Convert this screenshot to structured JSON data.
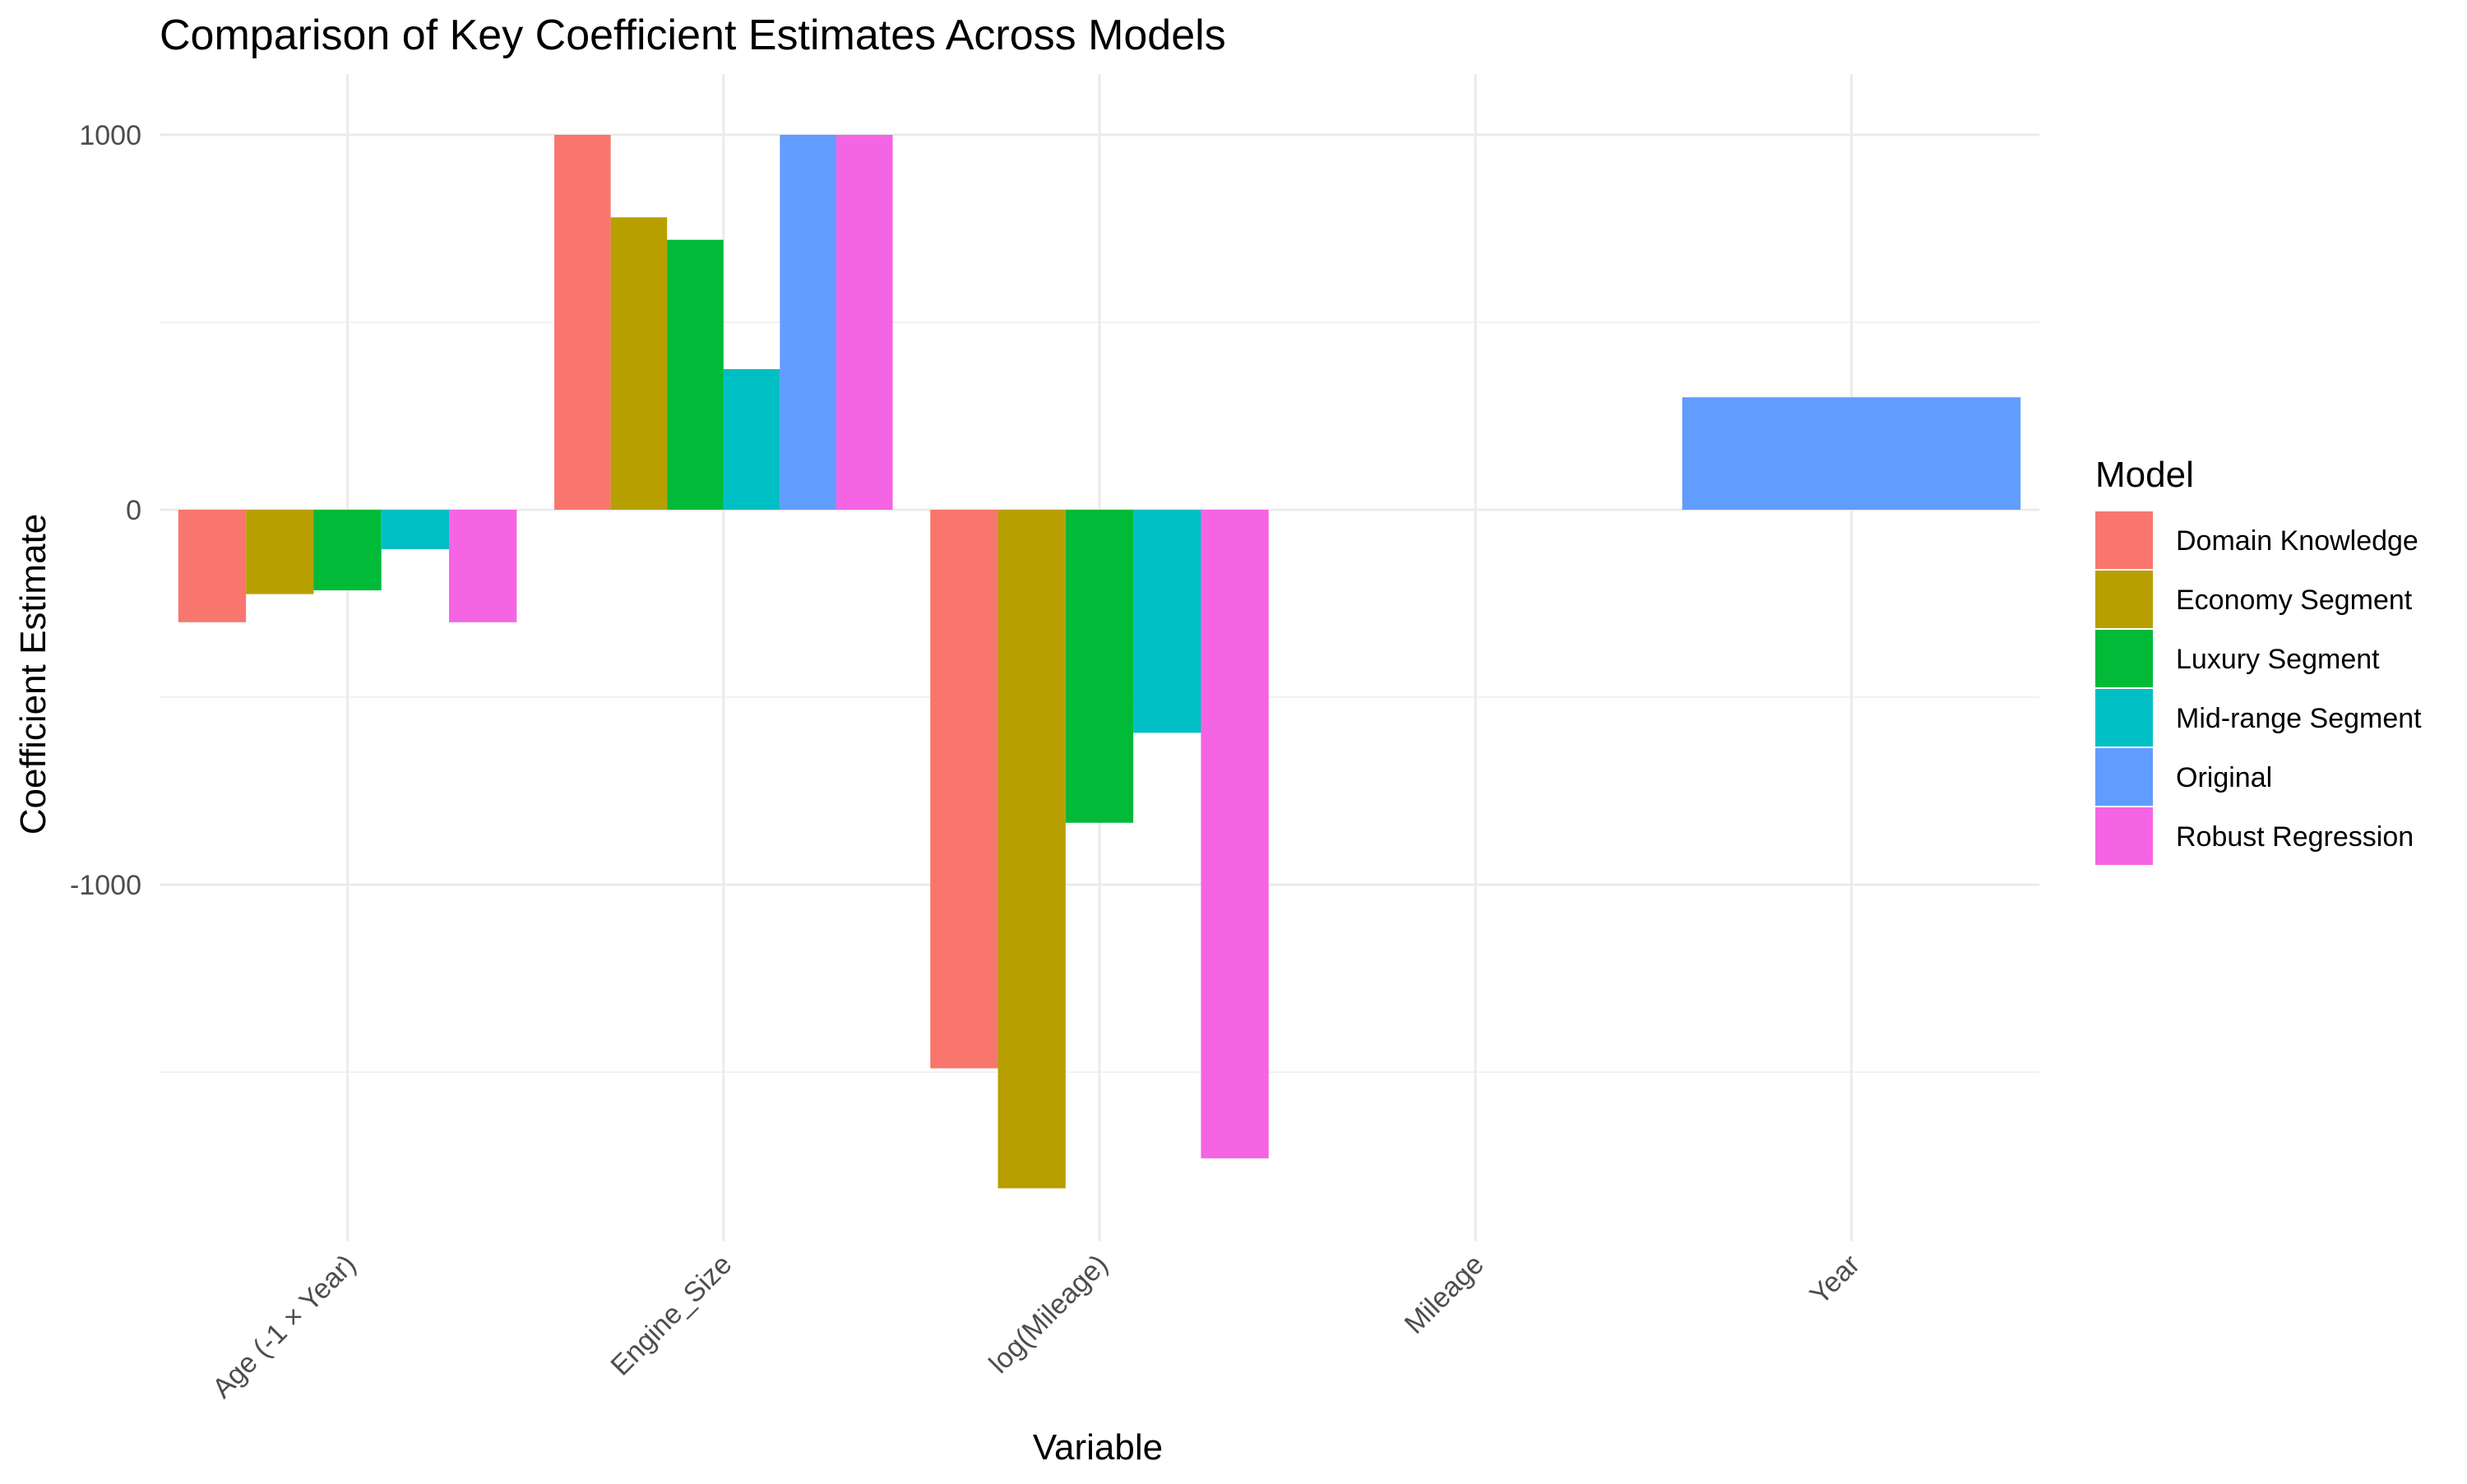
{
  "chart_data": {
    "type": "bar",
    "title": "Comparison of Key Coefficient Estimates Across Models",
    "xlabel": "Variable",
    "ylabel": "Coefficient Estimate",
    "ylim": [
      -1950,
      1130
    ],
    "yticks": [
      1000,
      0,
      -1000
    ],
    "ytick_labels": [
      "1000",
      "0",
      "-1000"
    ],
    "categories": [
      "Age (-1 × Year)",
      "Engine_Size",
      "log(Mileage)",
      "Mileage",
      "Year"
    ],
    "grid": true,
    "legend": {
      "title": "Model",
      "position": "right"
    },
    "series": [
      {
        "name": "Domain Knowledge",
        "color": "#F8766D",
        "values": [
          -300,
          1000,
          -1490,
          null,
          null
        ]
      },
      {
        "name": "Economy Segment",
        "color": "#B79F00",
        "values": [
          -225,
          780,
          -1810,
          null,
          null
        ]
      },
      {
        "name": "Luxury Segment",
        "color": "#00BA38",
        "values": [
          -215,
          720,
          -835,
          null,
          null
        ]
      },
      {
        "name": "Mid-range Segment",
        "color": "#00BFC4",
        "values": [
          -105,
          375,
          -595,
          null,
          null
        ]
      },
      {
        "name": "Original",
        "color": "#619CFF",
        "values": [
          null,
          1000,
          null,
          null,
          300
        ]
      },
      {
        "name": "Robust Regression",
        "color": "#F564E3",
        "values": [
          -300,
          1000,
          -1730,
          null,
          null
        ]
      }
    ]
  }
}
